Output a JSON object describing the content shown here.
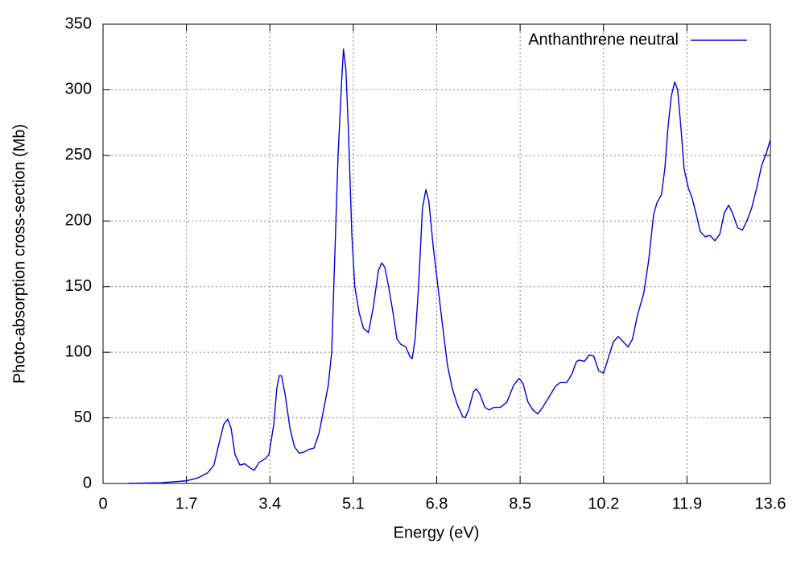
{
  "chart_data": {
    "type": "line",
    "xlabel": "Energy (eV)",
    "ylabel": "Photo-absorption cross-section (Mb)",
    "xlim": [
      0,
      13.6
    ],
    "ylim": [
      0,
      350
    ],
    "xticks": [
      0,
      1.7,
      3.4,
      5.1,
      6.8,
      8.5,
      10.2,
      11.9,
      13.6
    ],
    "yticks": [
      0,
      50,
      100,
      150,
      200,
      250,
      300,
      350
    ],
    "grid": true,
    "legend": "upper right",
    "x": [
      0.52,
      1.18,
      1.7,
      1.92,
      2.13,
      2.26,
      2.36,
      2.46,
      2.54,
      2.61,
      2.69,
      2.79,
      2.89,
      2.99,
      3.08,
      3.18,
      3.31,
      3.38,
      3.48,
      3.54,
      3.59,
      3.64,
      3.71,
      3.81,
      3.9,
      4.0,
      4.1,
      4.2,
      4.3,
      4.4,
      4.49,
      4.59,
      4.66,
      4.72,
      4.79,
      4.86,
      4.9,
      4.95,
      5.0,
      5.07,
      5.13,
      5.22,
      5.31,
      5.41,
      5.51,
      5.61,
      5.68,
      5.74,
      5.82,
      5.91,
      5.99,
      6.07,
      6.17,
      6.25,
      6.3,
      6.36,
      6.43,
      6.51,
      6.58,
      6.64,
      6.73,
      6.81,
      6.92,
      7.02,
      7.12,
      7.22,
      7.33,
      7.38,
      7.45,
      7.55,
      7.61,
      7.68,
      7.78,
      7.87,
      7.97,
      8.1,
      8.23,
      8.37,
      8.48,
      8.56,
      8.66,
      8.76,
      8.86,
      8.96,
      9.09,
      9.22,
      9.32,
      9.45,
      9.55,
      9.65,
      9.71,
      9.81,
      9.91,
      10.0,
      10.1,
      10.2,
      10.3,
      10.4,
      10.5,
      10.6,
      10.7,
      10.79,
      10.89,
      11.02,
      11.12,
      11.22,
      11.29,
      11.38,
      11.45,
      11.51,
      11.58,
      11.65,
      11.71,
      11.78,
      11.84,
      11.93,
      12.0,
      12.09,
      12.17,
      12.27,
      12.37,
      12.47,
      12.57,
      12.66,
      12.75,
      12.83,
      12.93,
      13.03,
      13.12,
      13.22,
      13.32,
      13.42,
      13.52,
      13.6
    ],
    "series": [
      {
        "name": "Anthanthrene neutral",
        "color": "#0000dd",
        "values": [
          0,
          0.5,
          2,
          4,
          8,
          14,
          30,
          45,
          49,
          42,
          22,
          14,
          15,
          12,
          10,
          16,
          19,
          22,
          45,
          72,
          82,
          82,
          68,
          42,
          28,
          23,
          24,
          26,
          27,
          38,
          55,
          75,
          100,
          170,
          250,
          305,
          331,
          315,
          270,
          190,
          150,
          130,
          118,
          115,
          135,
          162,
          168,
          165,
          150,
          130,
          110,
          106,
          104,
          97,
          95,
          110,
          150,
          210,
          224,
          215,
          180,
          155,
          120,
          90,
          72,
          60,
          51,
          50,
          56,
          70,
          72,
          68,
          58,
          56,
          58,
          58,
          62,
          75,
          80,
          76,
          62,
          56,
          53,
          58,
          66,
          74,
          77,
          77,
          83,
          93,
          94,
          93,
          98,
          97,
          86,
          84,
          96,
          108,
          112,
          108,
          104,
          110,
          128,
          145,
          170,
          205,
          214,
          220,
          240,
          270,
          295,
          306,
          300,
          270,
          240,
          225,
          218,
          205,
          192,
          188,
          189,
          185,
          190,
          206,
          212,
          206,
          195,
          193,
          200,
          210,
          225,
          242,
          252,
          262
        ]
      }
    ]
  }
}
